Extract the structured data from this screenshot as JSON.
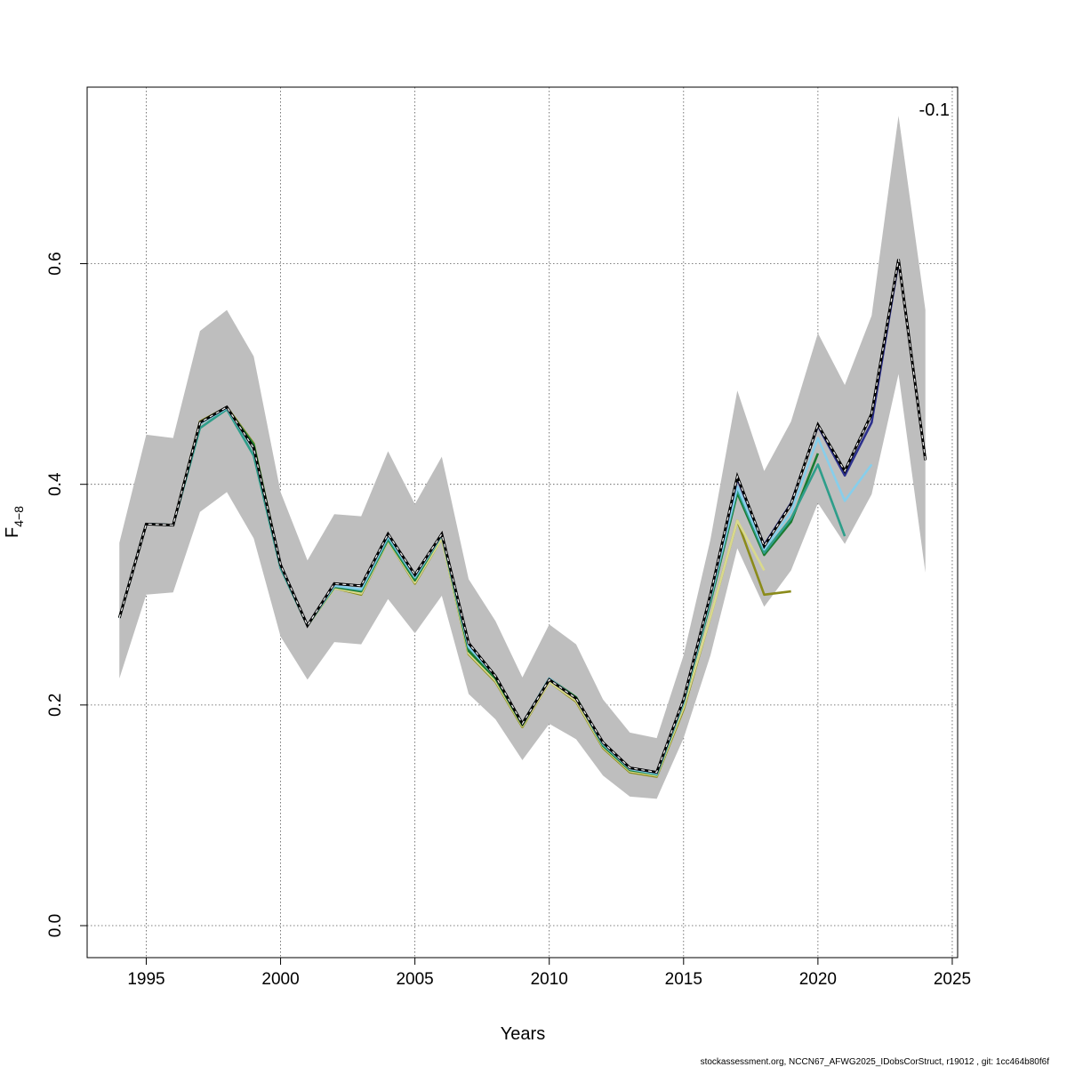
{
  "chart_data": {
    "type": "line",
    "title": "",
    "xlabel": "Years",
    "ylabel_main": "F",
    "ylabel_sub": "4−8",
    "annotation": "-0.1",
    "footer": "stockassessment.org, NCCN67_AFWG2025_IDobsCorStruct, r19012 , git: 1cc464b80f6f",
    "xlim": [
      1992.8,
      2025.2
    ],
    "ylim": [
      -0.029,
      0.76
    ],
    "xticks": [
      1995,
      2000,
      2005,
      2010,
      2015,
      2020,
      2025
    ],
    "xtick_labels": [
      "1995",
      "2000",
      "2005",
      "2010",
      "2015",
      "2020",
      "2025"
    ],
    "yticks": [
      0.0,
      0.2,
      0.4,
      0.6
    ],
    "ytick_labels": [
      "0.0",
      "0.2",
      "0.4",
      "0.6"
    ],
    "grid": true,
    "confidence_band": {
      "x": [
        1994,
        1995,
        1996,
        1997,
        1998,
        1999,
        2000,
        2001,
        2002,
        2003,
        2004,
        2005,
        2006,
        2007,
        2008,
        2009,
        2010,
        2011,
        2012,
        2013,
        2014,
        2015,
        2016,
        2017,
        2018,
        2019,
        2020,
        2021,
        2022,
        2023,
        2024
      ],
      "lower": [
        0.224,
        0.3,
        0.302,
        0.375,
        0.393,
        0.351,
        0.262,
        0.223,
        0.257,
        0.255,
        0.296,
        0.265,
        0.299,
        0.21,
        0.187,
        0.15,
        0.183,
        0.169,
        0.136,
        0.117,
        0.115,
        0.17,
        0.245,
        0.342,
        0.289,
        0.322,
        0.383,
        0.346,
        0.391,
        0.5,
        0.32
      ],
      "upper": [
        0.347,
        0.445,
        0.442,
        0.539,
        0.558,
        0.516,
        0.393,
        0.331,
        0.373,
        0.371,
        0.43,
        0.382,
        0.425,
        0.314,
        0.276,
        0.225,
        0.273,
        0.255,
        0.205,
        0.175,
        0.17,
        0.245,
        0.35,
        0.485,
        0.412,
        0.457,
        0.537,
        0.49,
        0.553,
        0.734,
        0.558
      ]
    },
    "series": [
      {
        "color": "#000000",
        "dashed": true,
        "values": [
          0.279,
          0.364,
          0.363,
          0.456,
          0.47,
          0.433,
          0.327,
          0.272,
          0.31,
          0.308,
          0.355,
          0.318,
          0.355,
          0.256,
          0.226,
          0.183,
          0.223,
          0.206,
          0.166,
          0.143,
          0.139,
          0.205,
          0.3,
          0.407,
          0.344,
          0.382,
          0.454,
          0.412,
          0.464,
          0.604,
          0.422
        ]
      },
      {
        "color": "#2b2f8c",
        "dashed": false,
        "values": [
          0.279,
          0.364,
          0.363,
          0.456,
          0.47,
          0.433,
          0.327,
          0.272,
          0.31,
          0.308,
          0.355,
          0.318,
          0.355,
          0.256,
          0.226,
          0.183,
          0.223,
          0.206,
          0.166,
          0.143,
          0.139,
          0.205,
          0.3,
          0.405,
          0.345,
          0.383,
          0.453,
          0.408,
          0.456,
          0.602
        ]
      },
      {
        "color": "#87ceeb",
        "dashed": false,
        "values": [
          0.279,
          0.364,
          0.363,
          0.455,
          0.469,
          0.432,
          0.326,
          0.272,
          0.308,
          0.305,
          0.353,
          0.316,
          0.354,
          0.253,
          0.226,
          0.183,
          0.224,
          0.206,
          0.165,
          0.142,
          0.138,
          0.203,
          0.297,
          0.398,
          0.341,
          0.375,
          0.442,
          0.385,
          0.418
        ]
      },
      {
        "color": "#2e9e8a",
        "dashed": false,
        "values": [
          0.279,
          0.364,
          0.363,
          0.451,
          0.468,
          0.426,
          0.324,
          0.272,
          0.308,
          0.304,
          0.351,
          0.315,
          0.354,
          0.252,
          0.226,
          0.183,
          0.224,
          0.206,
          0.164,
          0.142,
          0.137,
          0.202,
          0.295,
          0.395,
          0.338,
          0.369,
          0.418,
          0.353
        ]
      },
      {
        "color": "#1a7a2f",
        "dashed": false,
        "values": [
          0.279,
          0.364,
          0.363,
          0.455,
          0.469,
          0.436,
          0.326,
          0.272,
          0.307,
          0.303,
          0.35,
          0.313,
          0.354,
          0.249,
          0.224,
          0.182,
          0.224,
          0.207,
          0.163,
          0.141,
          0.137,
          0.202,
          0.293,
          0.392,
          0.336,
          0.366,
          0.428
        ]
      },
      {
        "color": "#d9d98c",
        "dashed": false,
        "values": [
          0.279,
          0.364,
          0.363,
          0.456,
          0.469,
          0.436,
          0.325,
          0.272,
          0.306,
          0.301,
          0.349,
          0.311,
          0.351,
          0.247,
          0.222,
          0.181,
          0.221,
          0.204,
          0.162,
          0.14,
          0.136,
          0.198,
          0.28,
          0.367,
          0.322
        ]
      },
      {
        "color": "#8b8b1a",
        "dashed": false,
        "values": [
          0.279,
          0.364,
          0.363,
          0.457,
          0.47,
          0.437,
          0.325,
          0.272,
          0.306,
          0.3,
          0.349,
          0.31,
          0.351,
          0.246,
          0.221,
          0.18,
          0.221,
          0.203,
          0.161,
          0.139,
          0.135,
          0.196,
          0.28,
          0.367,
          0.3,
          0.303
        ]
      },
      {
        "color": "#e8e84a",
        "dashed": false,
        "values": [
          0.279,
          0.364,
          0.363,
          0.456,
          0.47,
          0.436,
          0.326,
          0.272,
          0.306,
          0.301,
          0.349,
          0.311,
          0.351,
          0.246,
          0.222,
          0.181,
          0.221,
          0.204,
          0.162,
          0.14
        ]
      }
    ]
  }
}
